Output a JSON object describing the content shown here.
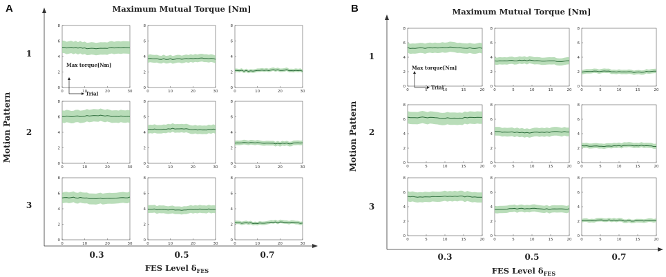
{
  "chart_data": [
    {
      "type": "line",
      "panel": "A",
      "title": "Maximum Mutual Torque [Nm]",
      "xlabel": "FES Level δ",
      "xlabel_sub": "FES",
      "ylabel": "Motion Pattern",
      "column_labels": [
        "0.3",
        "0.5",
        "0.7"
      ],
      "row_labels": [
        "1",
        "2",
        "3"
      ],
      "legend": {
        "y": "Max torque[Nm]",
        "x": "Trial"
      },
      "xlim": [
        0,
        30
      ],
      "ylim": [
        0,
        8
      ],
      "xticks": [
        0,
        10,
        20,
        30
      ],
      "yticks": [
        0,
        2,
        4,
        6,
        8
      ],
      "grid": [
        [
          {
            "mean": 5.1,
            "lower": 4.3,
            "upper": 5.9
          },
          {
            "mean": 3.7,
            "lower": 3.2,
            "upper": 4.2
          },
          {
            "mean": 2.2,
            "lower": 2.0,
            "upper": 2.45
          }
        ],
        [
          {
            "mean": 6.1,
            "lower": 5.3,
            "upper": 6.9
          },
          {
            "mean": 4.4,
            "lower": 3.9,
            "upper": 5.0
          },
          {
            "mean": 2.6,
            "lower": 2.3,
            "upper": 2.9
          }
        ],
        [
          {
            "mean": 5.4,
            "lower": 4.7,
            "upper": 6.1
          },
          {
            "mean": 3.9,
            "lower": 3.4,
            "upper": 4.4
          },
          {
            "mean": 2.2,
            "lower": 2.0,
            "upper": 2.45
          }
        ]
      ]
    },
    {
      "type": "line",
      "panel": "B",
      "title": "Maximum Mutual Torque [Nm]",
      "xlabel": "FES Level δ",
      "xlabel_sub": "FES",
      "ylabel": "Motion Pattern",
      "column_labels": [
        "0.3",
        "0.5",
        "0.7"
      ],
      "row_labels": [
        "1",
        "2",
        "3"
      ],
      "legend": {
        "y": "Max torque[Nm]",
        "x": "Trial"
      },
      "xlim": [
        0,
        20
      ],
      "ylim": [
        0,
        8
      ],
      "xticks": [
        0,
        5,
        10,
        15,
        20
      ],
      "yticks": [
        0,
        2,
        4,
        6,
        8
      ],
      "grid": [
        [
          {
            "mean": 5.3,
            "lower": 4.6,
            "upper": 6.0
          },
          {
            "mean": 3.5,
            "lower": 3.0,
            "upper": 4.0
          },
          {
            "mean": 2.0,
            "lower": 1.7,
            "upper": 2.3
          }
        ],
        [
          {
            "mean": 6.2,
            "lower": 5.3,
            "upper": 7.0
          },
          {
            "mean": 4.2,
            "lower": 3.6,
            "upper": 4.8
          },
          {
            "mean": 2.3,
            "lower": 2.0,
            "upper": 2.7
          }
        ],
        [
          {
            "mean": 5.4,
            "lower": 4.7,
            "upper": 6.1
          },
          {
            "mean": 3.7,
            "lower": 3.2,
            "upper": 4.2
          },
          {
            "mean": 2.1,
            "lower": 1.85,
            "upper": 2.35
          }
        ]
      ]
    }
  ],
  "colors": {
    "band": "#a8d5a8",
    "mean_line": "#2b6b3a",
    "frame": "#555555",
    "axis": "#333333"
  }
}
